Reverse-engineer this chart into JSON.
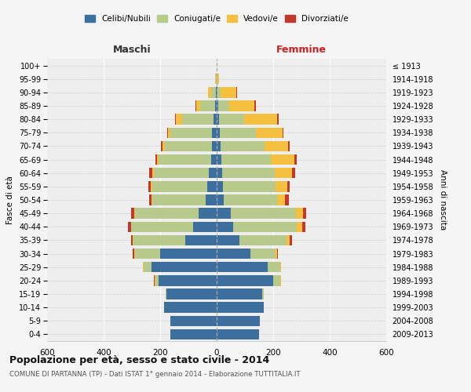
{
  "age_groups": [
    "0-4",
    "5-9",
    "10-14",
    "15-19",
    "20-24",
    "25-29",
    "30-34",
    "35-39",
    "40-44",
    "45-49",
    "50-54",
    "55-59",
    "60-64",
    "65-69",
    "70-74",
    "75-79",
    "80-84",
    "85-89",
    "90-94",
    "95-99",
    "100+"
  ],
  "birth_years": [
    "2009-2013",
    "2004-2008",
    "1999-2003",
    "1994-1998",
    "1989-1993",
    "1984-1988",
    "1979-1983",
    "1974-1978",
    "1969-1973",
    "1964-1968",
    "1959-1963",
    "1954-1958",
    "1949-1953",
    "1944-1948",
    "1939-1943",
    "1934-1938",
    "1929-1933",
    "1924-1928",
    "1919-1923",
    "1914-1918",
    "≤ 1913"
  ],
  "male_celibi": [
    165,
    165,
    185,
    178,
    205,
    230,
    200,
    112,
    82,
    65,
    38,
    32,
    28,
    20,
    18,
    18,
    12,
    5,
    2,
    1,
    1
  ],
  "male_coniugati": [
    0,
    0,
    0,
    2,
    12,
    28,
    90,
    182,
    220,
    225,
    190,
    195,
    195,
    185,
    165,
    145,
    110,
    52,
    18,
    2,
    0
  ],
  "male_vedovi": [
    0,
    0,
    0,
    0,
    2,
    2,
    2,
    2,
    2,
    2,
    2,
    5,
    5,
    5,
    8,
    8,
    22,
    15,
    10,
    2,
    0
  ],
  "male_divorziati": [
    0,
    0,
    0,
    0,
    2,
    2,
    5,
    8,
    10,
    10,
    8,
    10,
    10,
    8,
    5,
    5,
    2,
    2,
    0,
    0,
    0
  ],
  "female_nubili": [
    150,
    152,
    168,
    162,
    200,
    180,
    120,
    80,
    58,
    50,
    25,
    22,
    20,
    18,
    15,
    12,
    8,
    5,
    3,
    1,
    1
  ],
  "female_coniugate": [
    0,
    0,
    0,
    4,
    25,
    45,
    88,
    168,
    225,
    230,
    188,
    185,
    185,
    175,
    155,
    128,
    88,
    40,
    12,
    2,
    0
  ],
  "female_vedove": [
    0,
    0,
    0,
    0,
    2,
    2,
    5,
    10,
    20,
    25,
    30,
    42,
    62,
    82,
    82,
    92,
    118,
    88,
    55,
    5,
    0
  ],
  "female_divorziate": [
    0,
    0,
    0,
    0,
    2,
    2,
    5,
    10,
    12,
    12,
    12,
    10,
    10,
    8,
    5,
    5,
    5,
    5,
    2,
    0,
    0
  ],
  "color_celibi": "#3C6E9E",
  "color_coniugati": "#B8C98C",
  "color_vedovi": "#F5C040",
  "color_divorziati": "#C0392B",
  "xlim": 600,
  "title": "Popolazione per età, sesso e stato civile - 2014",
  "subtitle": "COMUNE DI PARTANNA (TP) - Dati ISTAT 1° gennaio 2014 - Elaborazione TUTTITALIA.IT",
  "maschi_label": "Maschi",
  "femmine_label": "Femmine",
  "ylabel_left": "Fasce di età",
  "ylabel_right": "Anni di nascita",
  "legend_labels": [
    "Celibi/Nubili",
    "Coniugati/e",
    "Vedovi/e",
    "Divorziati/e"
  ],
  "bg_color": "#f5f5f5",
  "plot_bg": "#eeeeee",
  "xticks": [
    -600,
    -400,
    -200,
    0,
    200,
    400,
    600
  ]
}
